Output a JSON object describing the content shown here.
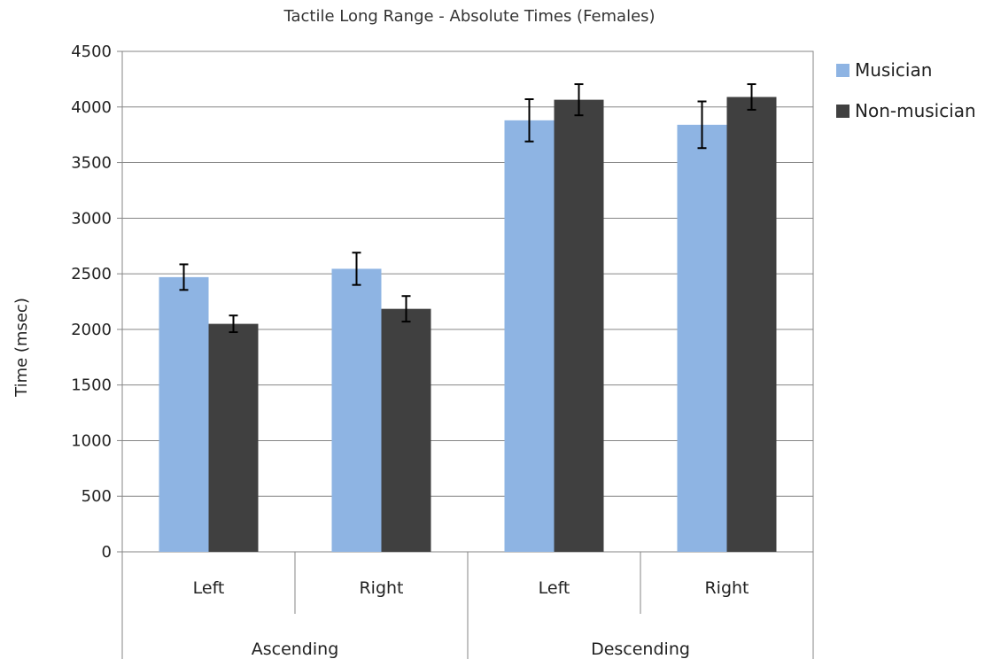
{
  "chart_data": {
    "type": "bar",
    "title": "Tactile Long Range - Absolute Times (Females)",
    "ylabel": "Time (msec)",
    "xlabel": "",
    "ylim": [
      0,
      4500
    ],
    "yticks": [
      0,
      500,
      1000,
      1500,
      2000,
      2500,
      3000,
      3500,
      4000,
      4500
    ],
    "grid": true,
    "legend_position": "right",
    "groups": [
      {
        "label": "Ascending",
        "categories": [
          "Left",
          "Right"
        ]
      },
      {
        "label": "Descending",
        "categories": [
          "Left",
          "Right"
        ]
      }
    ],
    "categories": [
      "Left",
      "Right",
      "Left",
      "Right"
    ],
    "series": [
      {
        "name": "Musician",
        "color": "#8eb4e3",
        "values": [
          2470,
          2545,
          3880,
          3840
        ],
        "errors": [
          115,
          145,
          190,
          210
        ]
      },
      {
        "name": "Non-musician",
        "color": "#404040",
        "values": [
          2050,
          2185,
          4065,
          4090
        ],
        "errors": [
          75,
          115,
          140,
          115
        ]
      }
    ]
  }
}
